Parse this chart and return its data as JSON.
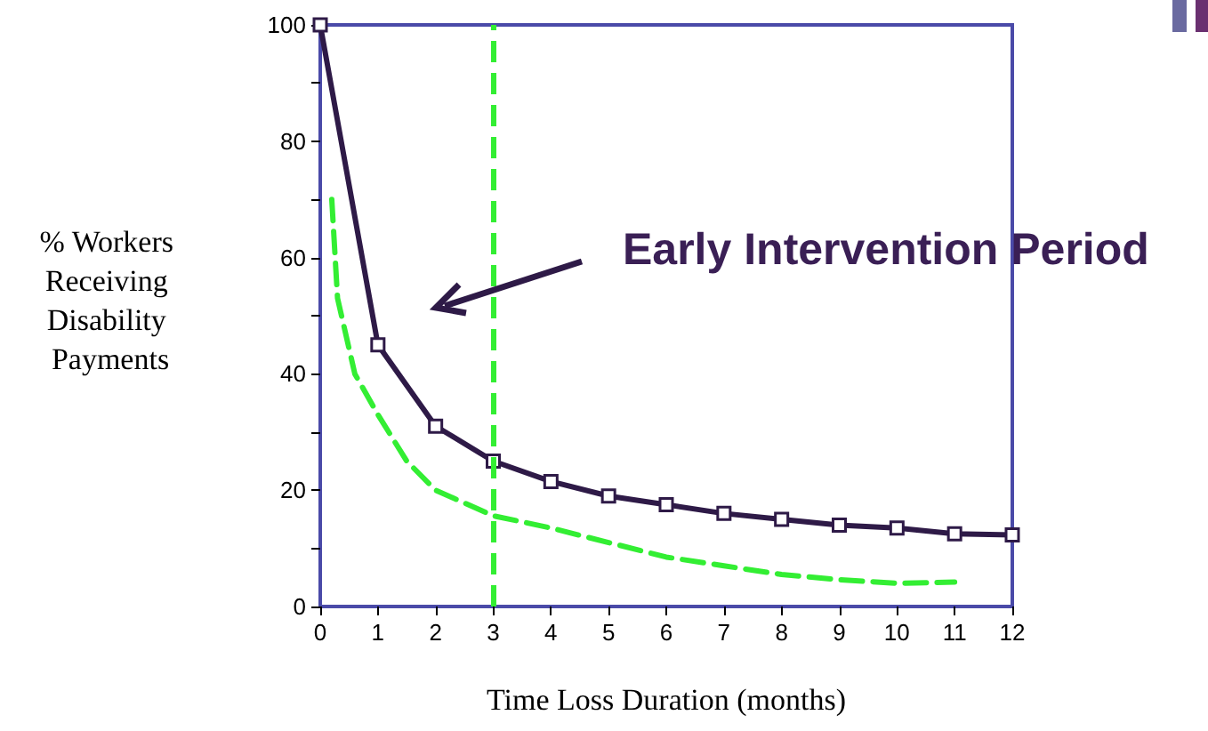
{
  "chart_data": {
    "type": "line",
    "xlabel": "Time Loss Duration (months)",
    "ylabel": "% Workers Receiving Disability Payments",
    "xlim": [
      0,
      12
    ],
    "xticks": [
      0,
      1,
      2,
      3,
      4,
      5,
      6,
      7,
      8,
      9,
      10,
      11,
      12
    ],
    "ylim": [
      0,
      100
    ],
    "yticks": [
      0,
      {
        "value": 10,
        "label": null
      },
      20,
      {
        "value": 30,
        "label": null
      },
      40,
      {
        "value": 50,
        "label": null
      },
      60,
      {
        "value": 70,
        "label": null
      },
      80,
      {
        "value": 90,
        "label": null
      },
      100
    ],
    "series": [
      {
        "color": "#2e1a47",
        "marker": "square",
        "line_style": "solid",
        "x": [
          0,
          1,
          2,
          3,
          4,
          5,
          6,
          7,
          8,
          9,
          10,
          11,
          12
        ],
        "values": [
          100,
          45,
          31,
          25,
          21.5,
          19,
          17.5,
          16,
          15,
          14,
          13.5,
          12.5,
          12.3
        ]
      },
      {
        "color": "#33ee33",
        "marker": "none",
        "line_style": "dashed",
        "x": [
          0.2,
          0.3,
          0.6,
          1,
          1.5,
          2,
          3,
          4,
          5,
          6,
          7,
          8,
          9,
          10,
          11
        ],
        "values": [
          70,
          53,
          40,
          33,
          25,
          20,
          15.6,
          13.5,
          11,
          8.5,
          7,
          5.5,
          4.6,
          4,
          4.2
        ]
      }
    ],
    "ref_lines": [
      {
        "axis": "x",
        "value": 3,
        "color": "#33ee33",
        "line_style": "dashed"
      }
    ],
    "annotations": [
      "Early Intervention Period"
    ]
  }
}
